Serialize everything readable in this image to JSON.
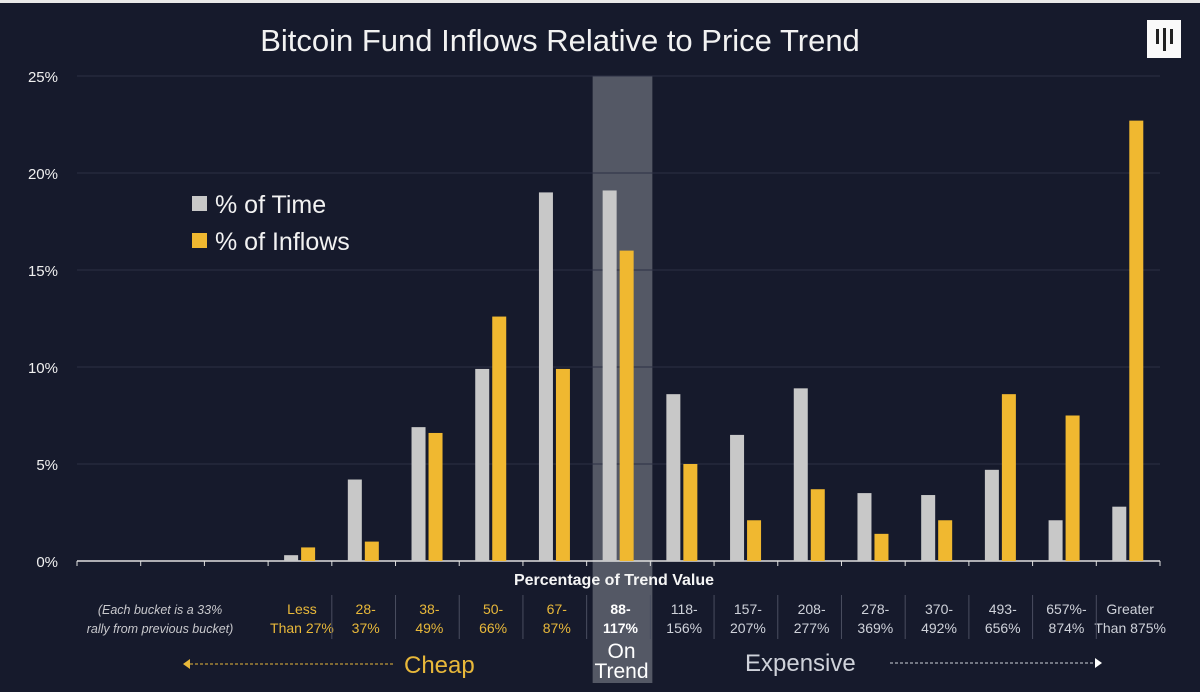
{
  "chart_data": {
    "type": "bar",
    "title": "Bitcoin Fund Inflows Relative to Price Trend",
    "xlabel": "Percentage of Trend Value",
    "xnote": [
      "(Each bucket is a 33%",
      "rally from previous bucket)"
    ],
    "ylabel": "",
    "ylim": [
      0,
      25
    ],
    "yticks": [
      "0%",
      "5%",
      "10%",
      "15%",
      "20%",
      "25%"
    ],
    "grid": true,
    "legend_placement": "top-left",
    "empty_leading_slots": 3,
    "categories": [
      [
        "Less",
        "Than 27%"
      ],
      [
        "28-",
        "37%"
      ],
      [
        "38-",
        "49%"
      ],
      [
        "50-",
        "66%"
      ],
      [
        "67-",
        "87%"
      ],
      [
        "88-",
        "117%"
      ],
      [
        "118-",
        "156%"
      ],
      [
        "157-",
        "207%"
      ],
      [
        "208-",
        "277%"
      ],
      [
        "278-",
        "369%"
      ],
      [
        "370-",
        "492%"
      ],
      [
        "493-",
        "656%"
      ],
      [
        "657%-",
        "874%"
      ],
      [
        "Greater",
        "Than 875%"
      ]
    ],
    "category_groups": [
      "cheap",
      "cheap",
      "cheap",
      "cheap",
      "cheap",
      "trend",
      "expensive",
      "expensive",
      "expensive",
      "expensive",
      "expensive",
      "expensive",
      "expensive",
      "expensive"
    ],
    "highlighted_category": "88-117%",
    "series": [
      {
        "name": "% of Time",
        "color": "#c8c8c8",
        "values": [
          0.3,
          4.2,
          6.9,
          9.9,
          19.0,
          19.1,
          8.6,
          6.5,
          8.9,
          3.5,
          3.4,
          4.7,
          2.1,
          2.8
        ]
      },
      {
        "name": "% of Inflows",
        "color": "#f0b830",
        "values": [
          0.7,
          1.0,
          6.6,
          12.6,
          9.9,
          16.0,
          5.0,
          2.1,
          3.7,
          1.4,
          2.1,
          8.6,
          7.5,
          22.7
        ]
      }
    ],
    "annotations": {
      "cheap": "Cheap",
      "on_trend": [
        "On",
        "Trend"
      ],
      "expensive": "Expensive"
    },
    "colors": {
      "background": "#161a2c",
      "cheap_label": "#e8b83a",
      "expensive_label": "#cfd2da",
      "highlight": "#6a6d78"
    }
  }
}
